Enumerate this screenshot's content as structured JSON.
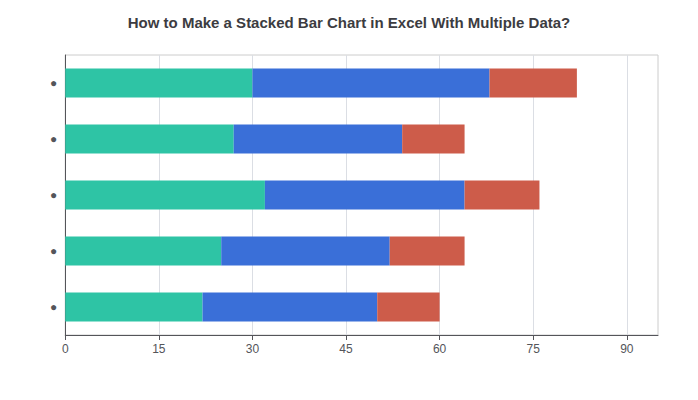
{
  "chart_data": {
    "type": "bar",
    "orientation": "horizontal",
    "stacked": true,
    "title": "How to Make a Stacked Bar Chart in Excel With Multiple Data?",
    "categories": [
      "●",
      "●",
      "●",
      "●",
      "●"
    ],
    "series": [
      {
        "color": "#2ec4a5",
        "values": [
          22,
          25,
          32,
          27,
          30
        ]
      },
      {
        "color": "#3a6fd8",
        "values": [
          28,
          27,
          32,
          27,
          38
        ]
      },
      {
        "color": "#cd5c4a",
        "values": [
          10,
          12,
          12,
          10,
          14
        ]
      }
    ],
    "xlim": [
      0,
      95
    ],
    "xticks": [
      0,
      15,
      30,
      45,
      60,
      75,
      90
    ],
    "grid": true
  }
}
